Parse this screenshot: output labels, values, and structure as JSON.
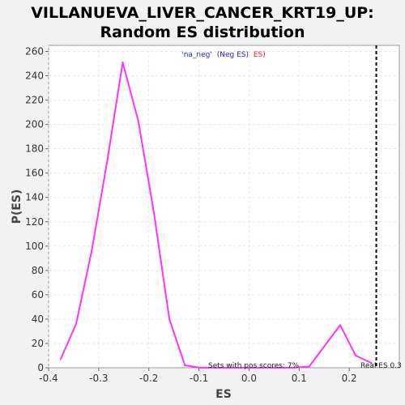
{
  "chart_data": {
    "type": "line",
    "title_line1": "VILLANUEVA_LIVER_CANCER_KRT19_UP:",
    "title_line2": "Random ES distribution",
    "xlabel": "ES",
    "ylabel": "P(ES)",
    "xlim": [
      -0.4,
      0.3
    ],
    "ylim": [
      0,
      265
    ],
    "x_ticks": [
      "-0.4",
      "-0.3",
      "-0.2",
      "-0.1",
      "0.0",
      "0.1",
      "0.2"
    ],
    "y_ticks": [
      "0",
      "20",
      "40",
      "60",
      "80",
      "100",
      "120",
      "140",
      "160",
      "180",
      "200",
      "220",
      "240",
      "260"
    ],
    "legend": {
      "part1": "'na_neg'",
      "part2": "(Neg ES)",
      "part3": "ES)"
    },
    "grid": true,
    "series": [
      {
        "color": "#ff33ff",
        "x": [
          -0.376,
          -0.345,
          -0.314,
          -0.283,
          -0.252,
          -0.221,
          -0.19,
          -0.159,
          -0.128,
          -0.097,
          -0.066,
          -0.035,
          -0.004,
          0.027,
          0.058,
          0.089,
          0.12,
          0.151,
          0.182,
          0.213,
          0.244
        ],
        "values": [
          7,
          36,
          96,
          170,
          251,
          203,
          128,
          40,
          2,
          0,
          0,
          0,
          0,
          0,
          0,
          0,
          1,
          18,
          35,
          10,
          4
        ]
      }
    ],
    "real_es": 0.254,
    "annotation_pos_scores": "Sets with pos scores: 7%",
    "annotation_real_es": "Real ES 0.3"
  }
}
